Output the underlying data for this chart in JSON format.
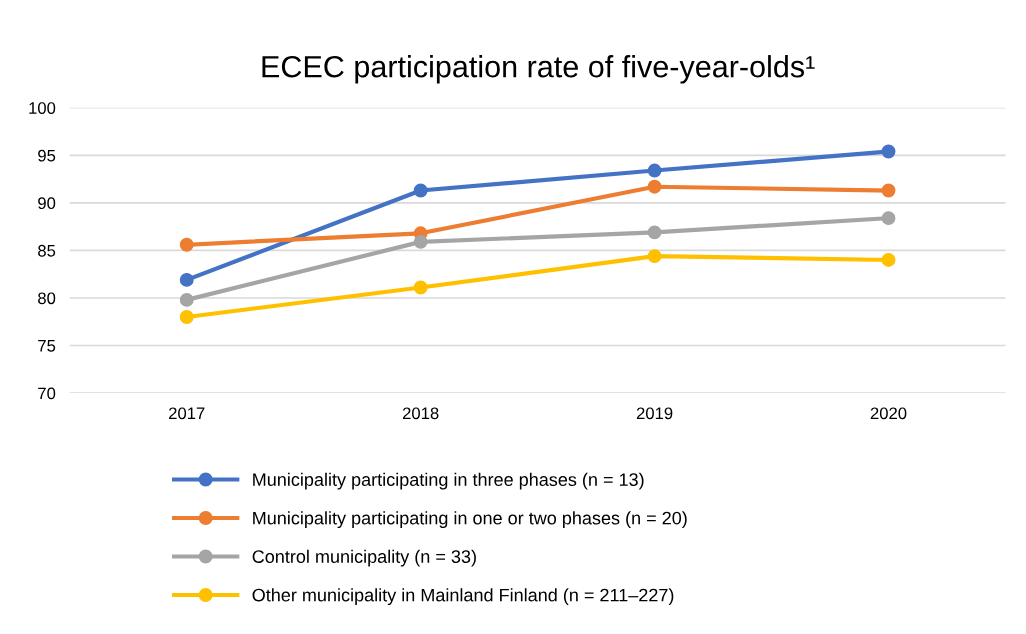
{
  "chart_data": {
    "type": "line",
    "title": "ECEC participation rate of five-year-olds¹",
    "categories": [
      "2017",
      "2018",
      "2019",
      "2020"
    ],
    "series": [
      {
        "name": "Municipality participating in three phases (n = 13)",
        "color": "#4472c4",
        "values": [
          81.9,
          91.3,
          93.4,
          95.4
        ]
      },
      {
        "name": "Municipality participating in one or two phases (n = 20)",
        "color": "#ed7d31",
        "values": [
          85.6,
          86.8,
          91.7,
          91.3
        ]
      },
      {
        "name": "Control municipality (n = 33)",
        "color": "#a5a5a5",
        "values": [
          79.8,
          85.9,
          86.9,
          88.4
        ]
      },
      {
        "name": "Other municipality in Mainland Finland (n = 211–227)",
        "color": "#ffc000",
        "values": [
          78.0,
          81.1,
          84.4,
          84.0
        ]
      }
    ],
    "ylim": [
      70,
      100
    ],
    "yticks": [
      70,
      75,
      80,
      85,
      90,
      95,
      100
    ],
    "grid": "y",
    "legend": "bottom",
    "marker": "circle",
    "line_style": "solid"
  }
}
